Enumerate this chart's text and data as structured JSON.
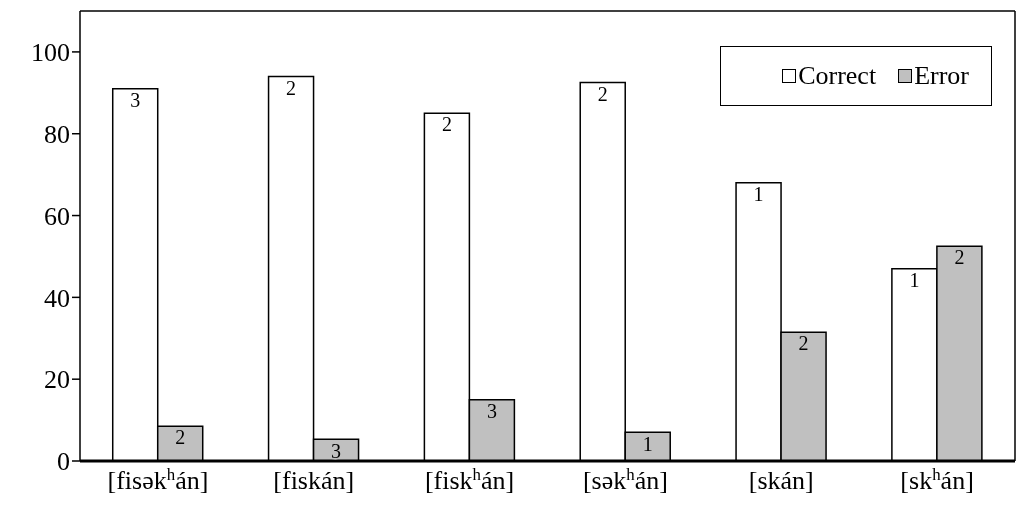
{
  "chart_data": {
    "type": "bar",
    "categories": [
      "[fisək$^{h}$án]",
      "[fiskán]",
      "[fisk$^{h}$án]",
      "[sək$^{h}$án]",
      "[skán]",
      "[sk$^{h}$án]"
    ],
    "series": [
      {
        "name": "Correct",
        "color": "#ffffff",
        "values": [
          91,
          94,
          85,
          92.5,
          68,
          47
        ]
      },
      {
        "name": "Error",
        "color": "#c0c0c0",
        "values": [
          8.5,
          5.3,
          15,
          7,
          31.5,
          52.5
        ]
      }
    ],
    "annotations": [
      {
        "text": "3",
        "x": "[fisək$^{h}$án]",
        "y": 91
      },
      {
        "text": "2",
        "x": "[fisək$^{h}$án]",
        "y": 8.5
      },
      {
        "text": "2",
        "x": "[fiskán]",
        "y": 94
      },
      {
        "text": "3",
        "x": "[fiskán]",
        "y": 5.3
      },
      {
        "text": "2",
        "x": "[fisk$^{h}$án]",
        "y": 85
      },
      {
        "text": "3",
        "x": "[fisk$^{h}$án]",
        "y": 15
      },
      {
        "text": "2",
        "x": "[sək$^{h}$án]",
        "y": 92.5
      },
      {
        "text": "1",
        "x": "[sək$^{h}$án]",
        "y": 7
      },
      {
        "text": "1",
        "x": "[skán]",
        "y": 68
      },
      {
        "text": "2",
        "x": "[skán]",
        "y": 31.5
      },
      {
        "text": "1",
        "x": "[sk$^{h}$án]",
        "y": 47
      },
      {
        "text": "2",
        "x": "[sk$^{h}$án]",
        "y": 52.5
      }
    ],
    "ylim": [
      0,
      110
    ],
    "yticks": [
      0,
      20,
      40,
      60,
      80,
      100
    ],
    "grid": false,
    "legend": "top right"
  }
}
